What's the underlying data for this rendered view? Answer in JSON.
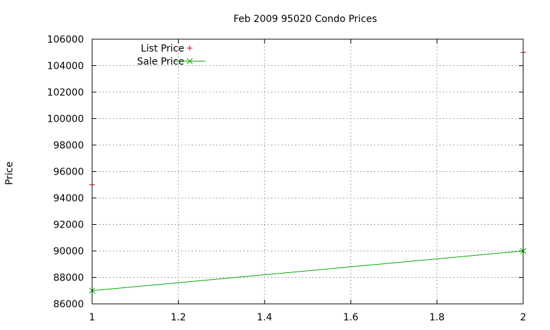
{
  "chart_data": {
    "type": "line",
    "title": "Feb 2009 95020 Condo Prices",
    "xlabel": "",
    "ylabel": "Price",
    "xlim": [
      1,
      2
    ],
    "ylim": [
      86000,
      106000
    ],
    "x_ticks": [
      "1",
      "1.2",
      "1.4",
      "1.6",
      "1.8",
      "2"
    ],
    "x_tick_values": [
      1,
      1.2,
      1.4,
      1.6,
      1.8,
      2
    ],
    "y_ticks": [
      "86000",
      "88000",
      "90000",
      "92000",
      "94000",
      "96000",
      "98000",
      "100000",
      "102000",
      "104000",
      "106000"
    ],
    "y_tick_values": [
      86000,
      88000,
      90000,
      92000,
      94000,
      96000,
      98000,
      100000,
      102000,
      104000,
      106000
    ],
    "grid": true,
    "legend_position": "top-left",
    "series": [
      {
        "name": "List Price",
        "style": "points",
        "marker": "plus",
        "color": "#cc0000",
        "points": [
          {
            "x": 1,
            "y": 95000
          },
          {
            "x": 2,
            "y": 105000
          }
        ]
      },
      {
        "name": "Sale Price",
        "style": "linespoints",
        "marker": "cross",
        "color": "#00aa00",
        "points": [
          {
            "x": 1,
            "y": 87000
          },
          {
            "x": 2,
            "y": 90000
          }
        ]
      }
    ]
  }
}
